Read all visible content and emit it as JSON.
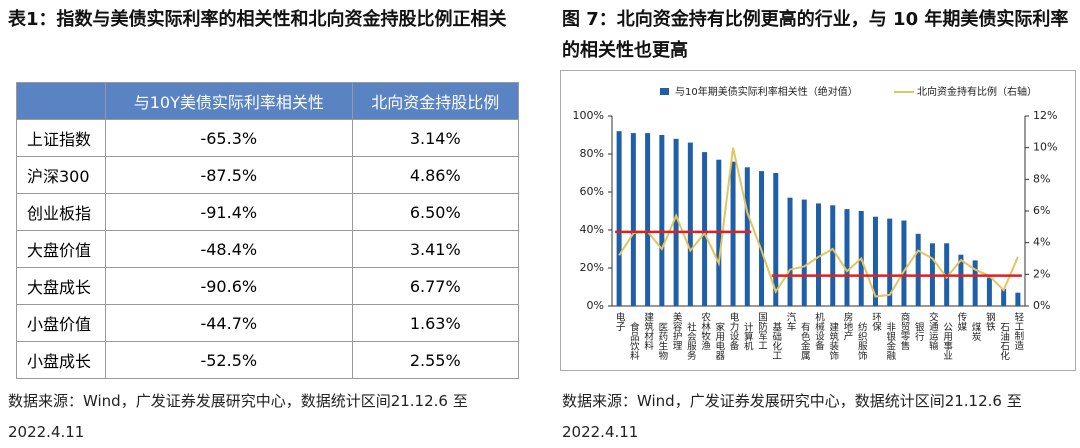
{
  "table_panel": {
    "title": "表1：指数与美债实际利率的相关性和北向资金持股比例正相关",
    "table": {
      "header": [
        "与10Y美债实际利率相关性",
        "北向资金持股比例"
      ],
      "rows": [
        [
          "上证指数",
          "-65.3%",
          "3.14%"
        ],
        [
          "沪深300",
          "-87.5%",
          "4.86%"
        ],
        [
          "创业板指",
          "-91.4%",
          "6.50%"
        ],
        [
          "大盘价值",
          "-48.4%",
          "3.41%"
        ],
        [
          "大盘成长",
          "-90.6%",
          "6.77%"
        ],
        [
          "小盘价值",
          "-44.7%",
          "1.63%"
        ],
        [
          "小盘成长",
          "-52.5%",
          "2.55%"
        ]
      ]
    },
    "source": "数据来源：Wind，广发证券发展研究中心，数据统计区间21.12.6 至 2022.4.11"
  },
  "chart_panel": {
    "title": "图 7：北向资金持有比例更高的行业，与 10 年期美债实际利率的相关性也更高",
    "source": "数据来源：Wind，广发证券发展研究中心，数据统计区间21.12.6 至 2022.4.11"
  },
  "chart_data": {
    "type": "bar-line",
    "categories": [
      "电子",
      "食品饮料",
      "建筑材料",
      "医药生物",
      "美容护理",
      "社会服务",
      "农林牧渔",
      "家用电器",
      "电力设备",
      "计算机",
      "国防军工",
      "基础化工",
      "汽车",
      "有色金属",
      "机械设备",
      "建筑装饰",
      "房地产",
      "纺织服饰",
      "环保",
      "非银金融",
      "商贸零售",
      "银行",
      "交通运输",
      "公用事业",
      "传媒",
      "煤炭",
      "钢铁",
      "石油石化",
      "轻工制造"
    ],
    "series": [
      {
        "name": "与10年期美债实际利率相关性（绝对值）",
        "color": "#1f5fa8",
        "kind": "bar",
        "values": [
          92,
          91,
          91,
          90,
          88,
          86,
          81,
          77,
          76,
          73,
          71,
          70,
          57,
          56,
          54,
          53,
          51,
          50,
          47,
          46,
          45,
          38,
          33,
          33,
          27,
          24,
          15,
          9,
          7
        ]
      },
      {
        "name": "北向资金持有比例（右轴）",
        "color": "#e2c55e",
        "kind": "line",
        "axis": "y2",
        "values": [
          3.2,
          4.6,
          4.7,
          3.6,
          5.7,
          3.5,
          4.6,
          2.7,
          10,
          5.9,
          3.5,
          0.9,
          2.3,
          2.5,
          3.1,
          3.6,
          2.2,
          3.0,
          0.6,
          0.7,
          2.2,
          3.5,
          3.0,
          1.8,
          2.9,
          2.3,
          1.9,
          1.0,
          3.1
        ]
      }
    ],
    "reference_lines": [
      {
        "value": 39,
        "start_category": "电子",
        "end_category": "计算机",
        "color": "#e02020"
      },
      {
        "value": 16,
        "start_category": "基础化工",
        "end_category": "轻工制造",
        "color": "#e02020"
      }
    ],
    "ylim": [
      0,
      100
    ],
    "yticks": [
      {
        "value": 0,
        "label": "0%"
      },
      {
        "value": 20,
        "label": "20%"
      },
      {
        "value": 40,
        "label": "40%"
      },
      {
        "value": 60,
        "label": "60%"
      },
      {
        "value": 80,
        "label": "80%"
      },
      {
        "value": 100,
        "label": "100%"
      }
    ],
    "y2lim": [
      0,
      12
    ],
    "y2ticks": [
      {
        "value": 0,
        "label": "0%"
      },
      {
        "value": 2,
        "label": "2%"
      },
      {
        "value": 4,
        "label": "4%"
      },
      {
        "value": 6,
        "label": "6%"
      },
      {
        "value": 8,
        "label": "8%"
      },
      {
        "value": 10,
        "label": "10%"
      },
      {
        "value": 12,
        "label": "12%"
      }
    ]
  }
}
